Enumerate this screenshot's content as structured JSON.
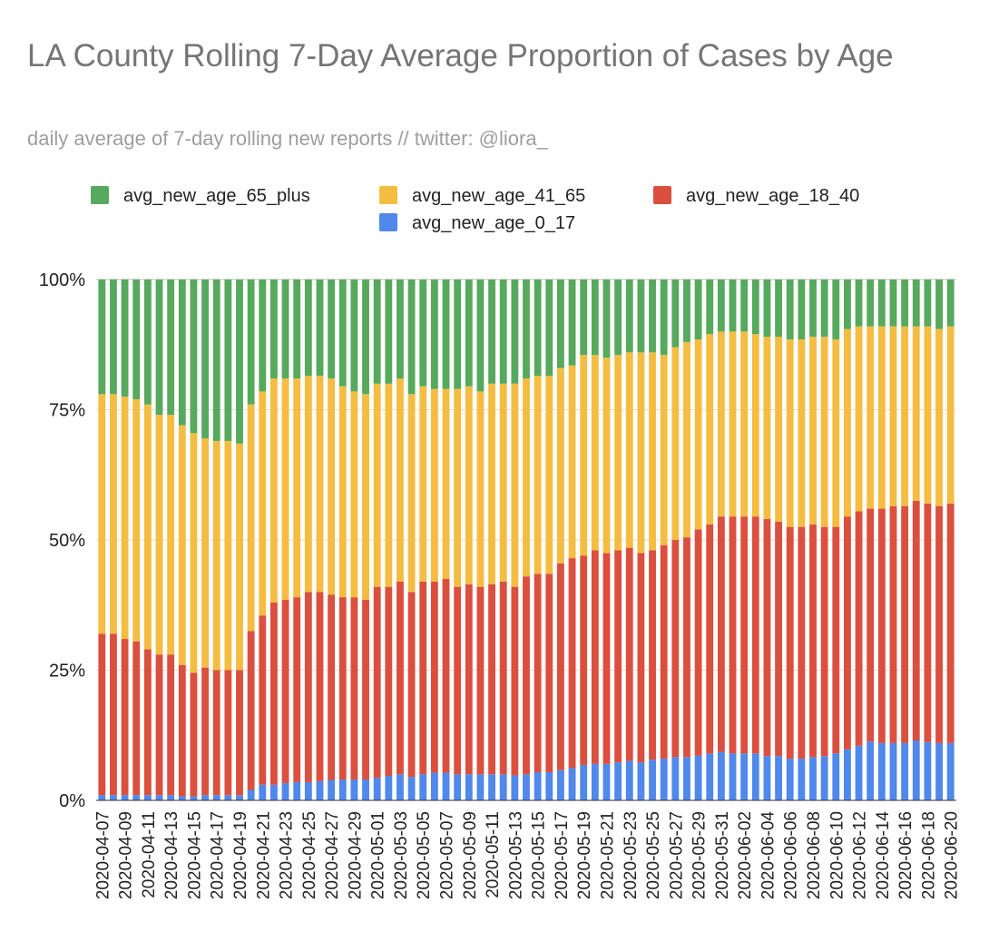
{
  "chart_data": {
    "type": "stacked_bar",
    "title": "LA County Rolling 7-Day Average Proportion of Cases by Age",
    "subtitle": "daily average of 7-day rolling new reports // twitter: @liora_",
    "categories": [
      "2020-04-07",
      null,
      "2020-04-09",
      null,
      "2020-04-11",
      null,
      "2020-04-13",
      null,
      "2020-04-15",
      null,
      "2020-04-17",
      null,
      "2020-04-19",
      null,
      "2020-04-21",
      null,
      "2020-04-23",
      null,
      "2020-04-25",
      null,
      "2020-04-27",
      null,
      "2020-04-29",
      null,
      "2020-05-01",
      null,
      "2020-05-03",
      null,
      "2020-05-05",
      null,
      "2020-05-07",
      null,
      "2020-05-09",
      null,
      "2020-05-11",
      null,
      "2020-05-13",
      null,
      "2020-05-15",
      null,
      "2020-05-17",
      null,
      "2020-05-19",
      null,
      "2020-05-21",
      null,
      "2020-05-23",
      null,
      "2020-05-25",
      null,
      "2020-05-27",
      null,
      "2020-05-29",
      null,
      "2020-05-31",
      null,
      "2020-06-02",
      null,
      "2020-06-04",
      null,
      "2020-06-06",
      null,
      "2020-06-08",
      null,
      "2020-06-10",
      null,
      "2020-06-12",
      null,
      "2020-06-14",
      null,
      "2020-06-16",
      null,
      "2020-06-18",
      null,
      "2020-06-20"
    ],
    "series": [
      {
        "name": "avg_new_age_65_plus",
        "color": "#57a95d",
        "values": [
          22,
          22,
          22.5,
          23,
          24,
          26,
          26,
          28,
          29.5,
          30.5,
          31,
          31,
          31.5,
          24,
          21.5,
          19,
          19,
          19,
          18.5,
          18.5,
          19,
          20.5,
          21.5,
          22,
          20,
          20,
          19,
          22,
          20.5,
          21,
          21,
          21,
          20.5,
          21.5,
          20,
          20,
          20,
          19,
          18.5,
          18.5,
          17,
          16.5,
          14.5,
          14.5,
          15,
          14.5,
          14,
          14,
          14,
          14.5,
          13,
          12,
          11.5,
          10.5,
          10,
          10,
          10,
          10.5,
          11,
          11,
          11.5,
          11.5,
          11,
          11,
          11.5,
          9.5,
          9,
          9,
          9,
          9,
          9,
          9,
          9,
          9.5,
          9
        ]
      },
      {
        "name": "avg_new_age_41_65",
        "color": "#f4bd42",
        "values": [
          46,
          46,
          46.5,
          46.5,
          47,
          46,
          46,
          46,
          46,
          44,
          44,
          44,
          43.5,
          43.5,
          43,
          43,
          42.5,
          42,
          41.5,
          41.5,
          41.5,
          40.5,
          39.5,
          39.5,
          39,
          39,
          39,
          38,
          37.5,
          37,
          36.5,
          38,
          38,
          37.5,
          38.5,
          38,
          39,
          38,
          38,
          38,
          37.5,
          37,
          38.5,
          37.5,
          37.5,
          37.5,
          37.5,
          38.5,
          38,
          36.5,
          37,
          37.5,
          36.5,
          36.5,
          35.5,
          35.5,
          35.5,
          35,
          35,
          35.5,
          36,
          36,
          36,
          36.5,
          36,
          36,
          35.5,
          35,
          35,
          34.5,
          34.5,
          33.5,
          34,
          34,
          34
        ]
      },
      {
        "name": "avg_new_age_18_40",
        "color": "#db4f3f",
        "values": [
          31,
          31,
          30,
          29.5,
          28,
          27,
          27,
          25.2,
          23.7,
          24.5,
          24,
          24,
          24,
          30.5,
          32.5,
          35,
          35.2,
          35.5,
          36.5,
          36.3,
          35.6,
          35,
          35,
          34.5,
          36.7,
          36.3,
          37,
          35.5,
          37,
          36.7,
          37.2,
          36,
          36.5,
          36,
          36.5,
          37,
          36.2,
          38,
          38.1,
          38.1,
          39.7,
          40.3,
          40.2,
          41,
          40.5,
          40.7,
          40.9,
          40.2,
          40.2,
          41,
          41.7,
          42.2,
          43.4,
          44,
          45.2,
          45.5,
          45.5,
          45.5,
          45.5,
          45,
          44.5,
          44.5,
          44.7,
          44,
          43.5,
          44.7,
          45,
          44.7,
          45,
          45.5,
          45.5,
          46,
          45.8,
          45.5,
          46
        ]
      },
      {
        "name": "avg_new_age_0_17",
        "color": "#5088ec",
        "values": [
          1,
          1,
          1,
          1,
          1,
          1,
          1,
          0.8,
          0.8,
          1,
          1,
          1,
          1,
          2,
          3,
          3,
          3.3,
          3.5,
          3.5,
          3.7,
          3.9,
          4,
          4,
          4,
          4.3,
          4.7,
          5,
          4.5,
          5,
          5.3,
          5.3,
          5,
          5,
          5,
          5,
          5,
          4.8,
          5,
          5.4,
          5.4,
          5.8,
          6.2,
          6.8,
          7,
          7,
          7.3,
          7.6,
          7.3,
          7.8,
          8,
          8.3,
          8.3,
          8.6,
          9,
          9.3,
          9,
          9,
          9,
          8.5,
          8.5,
          8,
          8,
          8.3,
          8.5,
          9,
          9.8,
          10.5,
          11.3,
          11,
          11,
          11,
          11.5,
          11.2,
          11,
          11
        ]
      }
    ],
    "ylim": [
      0,
      100
    ],
    "yticks": [
      {
        "value": 0,
        "label": "0%"
      },
      {
        "value": 25,
        "label": "25%"
      },
      {
        "value": 50,
        "label": "50%"
      },
      {
        "value": 75,
        "label": "75%"
      },
      {
        "value": 100,
        "label": "100%"
      }
    ],
    "grid": true,
    "legend": "top"
  }
}
